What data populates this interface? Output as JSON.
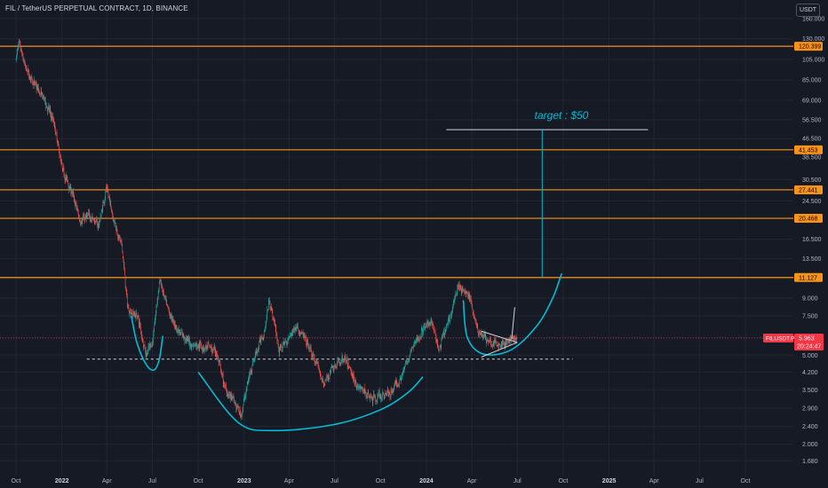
{
  "header": {
    "title": "FIL / TetherUS PERPETUAL CONTRACT, 1D, BINANCE",
    "currency_button": "USDT"
  },
  "colors": {
    "background": "#161a25",
    "up_candle": "#26a69a",
    "down_candle": "#ef5350",
    "level_line": "#f7931a",
    "level_tag": "#f7931a",
    "drawing": "#00bcd4",
    "annotation_text": "#00bcd4",
    "price_tag": "#f23645",
    "axis_text": "#b2b5be"
  },
  "chart_data": {
    "type": "candlestick",
    "symbol": "FIL / TetherUS PERPETUAL CONTRACT",
    "interval": "1D",
    "exchange": "BINANCE",
    "y_scale": "log",
    "ylim": [
      1.6,
      160
    ],
    "x_range": [
      "2021-10-01",
      "2025-10-31"
    ],
    "x_tick_labels": [
      {
        "label": "Oct",
        "date": "2021-10-01"
      },
      {
        "label": "2022",
        "date": "2022-01-01"
      },
      {
        "label": "Apr",
        "date": "2022-04-01"
      },
      {
        "label": "Jul",
        "date": "2022-07-01"
      },
      {
        "label": "Oct",
        "date": "2022-10-01"
      },
      {
        "label": "2023",
        "date": "2023-01-01"
      },
      {
        "label": "Apr",
        "date": "2023-04-01"
      },
      {
        "label": "Jul",
        "date": "2023-07-01"
      },
      {
        "label": "Oct",
        "date": "2023-10-01"
      },
      {
        "label": "2024",
        "date": "2024-01-01"
      },
      {
        "label": "Apr",
        "date": "2024-04-01"
      },
      {
        "label": "Jul",
        "date": "2024-07-01"
      },
      {
        "label": "Oct",
        "date": "2024-10-01"
      },
      {
        "label": "2025",
        "date": "2025-01-01"
      },
      {
        "label": "Apr",
        "date": "2025-04-01"
      },
      {
        "label": "Jul",
        "date": "2025-07-01"
      },
      {
        "label": "Oct",
        "date": "2025-10-01"
      }
    ],
    "y_tick_labels": [
      "160.000",
      "130.000",
      "105.000",
      "85.000",
      "69.000",
      "56.500",
      "46.500",
      "38.500",
      "30.500",
      "24.500",
      "20.500",
      "16.500",
      "13.500",
      "11.000",
      "9.000",
      "7.500",
      "6.000",
      "5.000",
      "4.200",
      "3.500",
      "2.900",
      "2.400",
      "2.000",
      "1.680"
    ],
    "horizontal_levels": [
      {
        "price": 120.399,
        "label": "120.399"
      },
      {
        "price": 41.453,
        "label": "41.453"
      },
      {
        "price": 27.441,
        "label": "27.441"
      },
      {
        "price": 20.468,
        "label": "20.468"
      },
      {
        "price": 11.127,
        "label": "11.127"
      }
    ],
    "current_price": {
      "symbol": "FILUSDT.P",
      "price": 5.963,
      "label": "5.963",
      "countdown": "20:24:47"
    },
    "dashed_support": {
      "price": 4.8,
      "from": "2022-02-20",
      "to": "2024-10-20"
    },
    "target_line": {
      "price": 51,
      "from": "2024-02-10",
      "to": "2025-03-20"
    },
    "target_annotation": "target : $50",
    "target_arrow": {
      "date": "2024-08-20",
      "from_price": 11.127,
      "to_price": 51
    },
    "keyframes": [
      {
        "date": "2021-10-01",
        "price": 105
      },
      {
        "date": "2021-10-05",
        "price": 125
      },
      {
        "date": "2021-10-20",
        "price": 95
      },
      {
        "date": "2021-11-08",
        "price": 80
      },
      {
        "date": "2021-11-25",
        "price": 70
      },
      {
        "date": "2021-12-15",
        "price": 55
      },
      {
        "date": "2022-01-01",
        "price": 34
      },
      {
        "date": "2022-01-20",
        "price": 27
      },
      {
        "date": "2022-02-05",
        "price": 20
      },
      {
        "date": "2022-02-25",
        "price": 21
      },
      {
        "date": "2022-03-15",
        "price": 19
      },
      {
        "date": "2022-03-30",
        "price": 28
      },
      {
        "date": "2022-04-15",
        "price": 20
      },
      {
        "date": "2022-05-01",
        "price": 15
      },
      {
        "date": "2022-05-12",
        "price": 8
      },
      {
        "date": "2022-06-01",
        "price": 7.5
      },
      {
        "date": "2022-06-18",
        "price": 5
      },
      {
        "date": "2022-07-01",
        "price": 5.8
      },
      {
        "date": "2022-07-15",
        "price": 11
      },
      {
        "date": "2022-07-30",
        "price": 8
      },
      {
        "date": "2022-08-20",
        "price": 6.5
      },
      {
        "date": "2022-09-15",
        "price": 5.6
      },
      {
        "date": "2022-10-10",
        "price": 5.5
      },
      {
        "date": "2022-11-05",
        "price": 5.2
      },
      {
        "date": "2022-11-20",
        "price": 3.7
      },
      {
        "date": "2022-12-25",
        "price": 2.7
      },
      {
        "date": "2023-01-15",
        "price": 4.5
      },
      {
        "date": "2023-02-10",
        "price": 6.5
      },
      {
        "date": "2023-02-20",
        "price": 9
      },
      {
        "date": "2023-03-12",
        "price": 5.2
      },
      {
        "date": "2023-04-15",
        "price": 6.8
      },
      {
        "date": "2023-05-10",
        "price": 5.4
      },
      {
        "date": "2023-06-10",
        "price": 3.7
      },
      {
        "date": "2023-06-25",
        "price": 4.4
      },
      {
        "date": "2023-07-20",
        "price": 4.8
      },
      {
        "date": "2023-08-17",
        "price": 3.6
      },
      {
        "date": "2023-09-15",
        "price": 3.2
      },
      {
        "date": "2023-10-20",
        "price": 3.4
      },
      {
        "date": "2023-11-15",
        "price": 4.2
      },
      {
        "date": "2023-12-10",
        "price": 5.8
      },
      {
        "date": "2023-12-25",
        "price": 6.5
      },
      {
        "date": "2024-01-10",
        "price": 7.2
      },
      {
        "date": "2024-01-25",
        "price": 5.2
      },
      {
        "date": "2024-02-15",
        "price": 7.2
      },
      {
        "date": "2024-03-05",
        "price": 10.5
      },
      {
        "date": "2024-03-15",
        "price": 9.5
      },
      {
        "date": "2024-03-25",
        "price": 9.3
      },
      {
        "date": "2024-04-13",
        "price": 6.4
      },
      {
        "date": "2024-05-10",
        "price": 5.6
      },
      {
        "date": "2024-06-10",
        "price": 5.7
      },
      {
        "date": "2024-06-30",
        "price": 5.96
      }
    ]
  },
  "drawings": {
    "cup_left": [
      {
        "date": "2022-05-20",
        "price": 7.5
      },
      {
        "date": "2022-06-01",
        "price": 5.6
      },
      {
        "date": "2022-06-20",
        "price": 4.5
      },
      {
        "date": "2022-07-05",
        "price": 4.3
      },
      {
        "date": "2022-07-15",
        "price": 4.8
      },
      {
        "date": "2022-07-22",
        "price": 6.1
      }
    ],
    "cup_big": [
      {
        "date": "2022-10-01",
        "price": 4.2
      },
      {
        "date": "2022-12-20",
        "price": 2.5
      },
      {
        "date": "2023-03-01",
        "price": 2.3
      },
      {
        "date": "2023-07-01",
        "price": 2.45
      },
      {
        "date": "2023-10-01",
        "price": 2.85
      },
      {
        "date": "2023-11-25",
        "price": 3.4
      },
      {
        "date": "2023-12-25",
        "price": 4
      }
    ],
    "cup_right": [
      {
        "date": "2024-03-15",
        "price": 8.8
      },
      {
        "date": "2024-03-23",
        "price": 6
      },
      {
        "date": "2024-04-25",
        "price": 5.05
      },
      {
        "date": "2024-06-20",
        "price": 5.3
      },
      {
        "date": "2024-08-10",
        "price": 6.8
      },
      {
        "date": "2024-09-10",
        "price": 9
      },
      {
        "date": "2024-09-28",
        "price": 11.6
      }
    ],
    "triangle": {
      "top": {
        "from": {
          "date": "2024-04-20",
          "price": 6.4
        },
        "to": {
          "date": "2024-07-01",
          "price": 5.7
        }
      },
      "bottom": {
        "from": {
          "date": "2024-04-20",
          "price": 4.9
        },
        "to": {
          "date": "2024-07-01",
          "price": 5.7
        }
      },
      "breakout": {
        "from": {
          "date": "2024-06-20",
          "price": 5.9
        },
        "to": {
          "date": "2024-06-26",
          "price": 8.2
        }
      }
    }
  }
}
